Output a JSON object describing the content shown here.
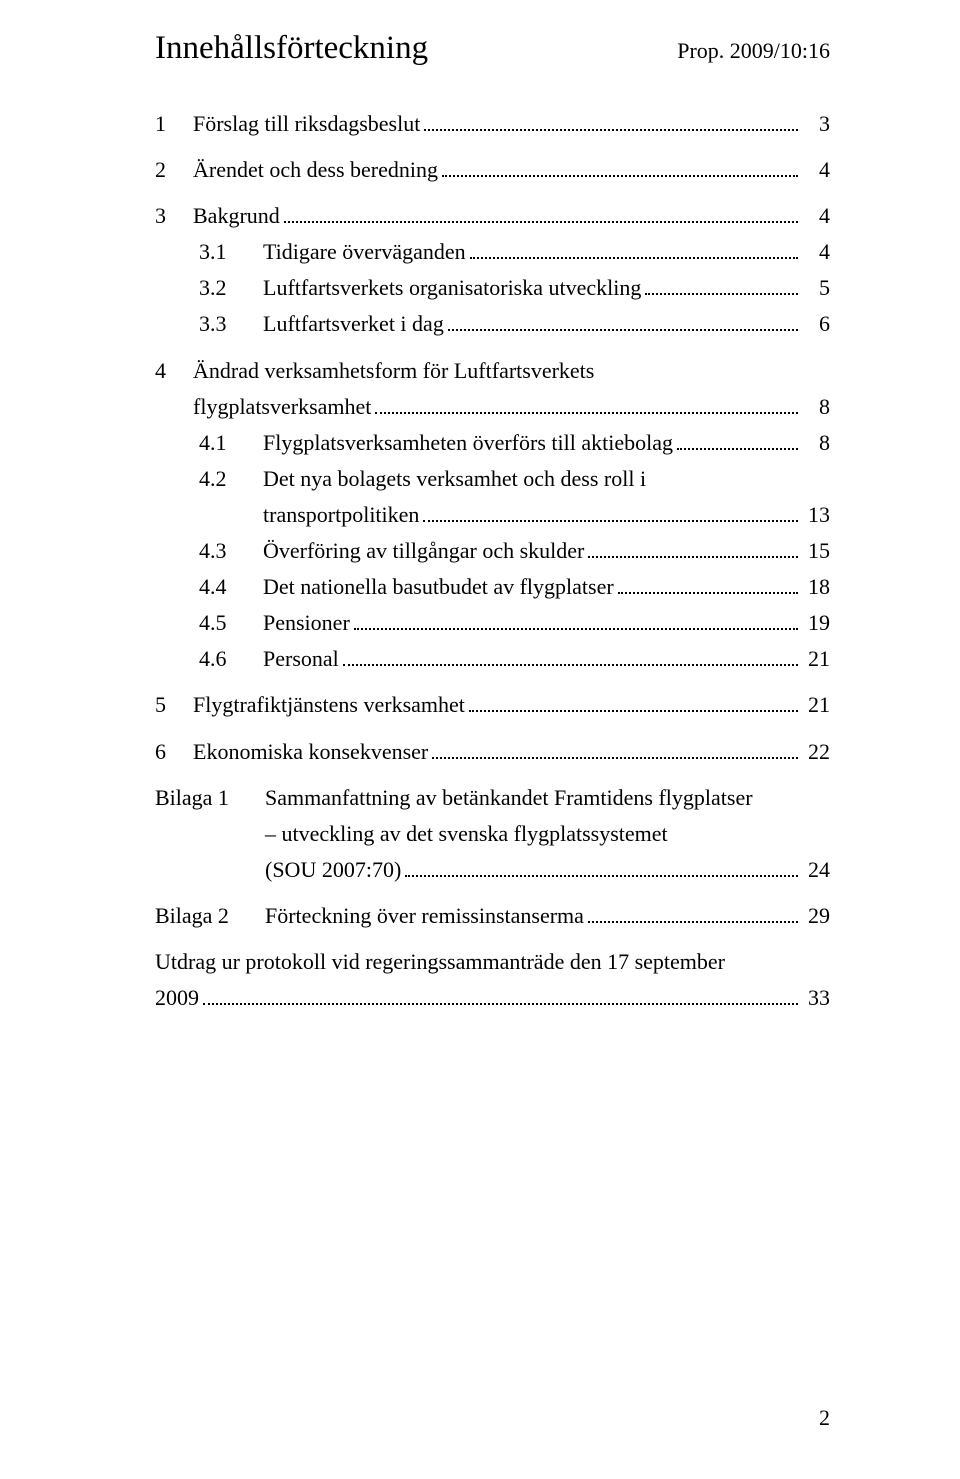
{
  "header": {
    "title": "Innehållsförteckning",
    "prop": "Prop. 2009/10:16"
  },
  "toc": {
    "block1": [
      {
        "num": "1",
        "text": "Förslag till riksdagsbeslut",
        "page": "3"
      }
    ],
    "block2": [
      {
        "num": "2",
        "text": "Ärendet och dess beredning",
        "page": "4"
      }
    ],
    "block3": {
      "main": {
        "num": "3",
        "text": "Bakgrund",
        "page": "4"
      },
      "subs": [
        {
          "num": "3.1",
          "text": "Tidigare överväganden",
          "page": "4"
        },
        {
          "num": "3.2",
          "text": "Luftfartsverkets organisatoriska utveckling",
          "page": "5"
        },
        {
          "num": "3.3",
          "text": "Luftfartsverket i dag",
          "page": "6"
        }
      ]
    },
    "block4": {
      "main": {
        "num": "4",
        "line1": "Ändrad verksamhetsform för Luftfartsverkets",
        "line2": "flygplatsverksamhet",
        "page": "8"
      },
      "subs": [
        {
          "num": "4.1",
          "text": "Flygplatsverksamheten överförs till aktiebolag",
          "page": "8"
        },
        {
          "num": "4.2",
          "line1": "Det nya bolagets verksamhet och dess roll i",
          "line2": "transportpolitiken",
          "page": "13"
        },
        {
          "num": "4.3",
          "text": "Överföring av tillgångar och skulder",
          "page": "15"
        },
        {
          "num": "4.4",
          "text": "Det nationella basutbudet av flygplatser",
          "page": "18"
        },
        {
          "num": "4.5",
          "text": "Pensioner",
          "page": "19"
        },
        {
          "num": "4.6",
          "text": "Personal",
          "page": "21"
        }
      ]
    },
    "block5": [
      {
        "num": "5",
        "text": "Flygtrafiktjänstens verksamhet",
        "page": "21"
      }
    ],
    "block6": [
      {
        "num": "6",
        "text": "Ekonomiska konsekvenser",
        "page": "22"
      }
    ],
    "bilaga1": {
      "label": "Bilaga 1",
      "line1": "Sammanfattning av betänkandet Framtidens flygplatser",
      "line2": "– utveckling av det svenska flygplatssystemet",
      "line3": "(SOU 2007:70)",
      "page": "24"
    },
    "bilaga2": {
      "label": "Bilaga 2",
      "text": "Förteckning över remissinstanserma",
      "page": "29"
    },
    "utdrag": {
      "line1": "Utdrag ur protokoll vid regeringssammanträde den 17 september",
      "line2": "2009",
      "page": "33"
    }
  },
  "page_number": "2"
}
